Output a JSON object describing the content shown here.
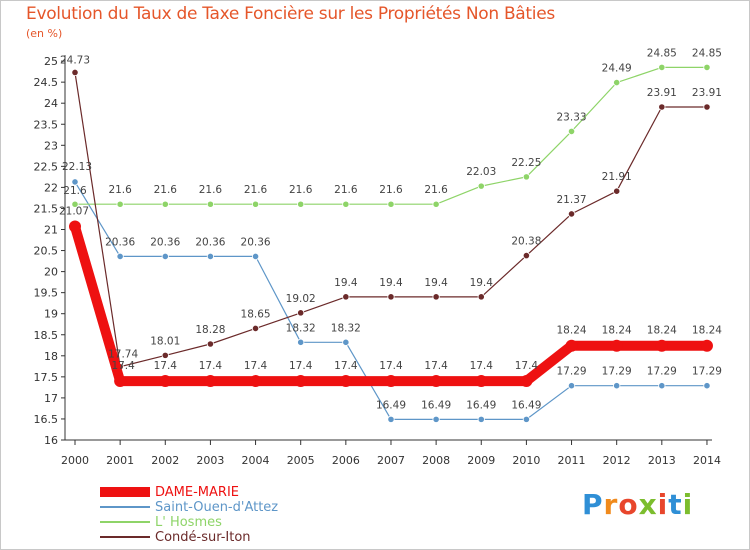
{
  "chart_data": {
    "type": "line",
    "title": "Evolution du Taux de Taxe Foncière sur les Propriétés Non Bâties",
    "unit_label": "(en %)",
    "xlabel": "",
    "ylabel": "",
    "x": [
      "2000",
      "2001",
      "2002",
      "2003",
      "2004",
      "2005",
      "2006",
      "2007",
      "2008",
      "2009",
      "2010",
      "2011",
      "2012",
      "2013",
      "2014"
    ],
    "ylim": [
      16,
      25
    ],
    "yticks": [
      "16",
      "16.5",
      "17",
      "17.5",
      "18",
      "18.5",
      "19",
      "19.5",
      "20",
      "20.5",
      "21",
      "21.5",
      "22",
      "22.5",
      "23",
      "23.5",
      "24",
      "24.5",
      "25"
    ],
    "grid": false,
    "legend_position": "bottom-left",
    "series": [
      {
        "name": "DAME-MARIE",
        "color": "#ee1111",
        "width": 10,
        "values": [
          21.07,
          17.4,
          17.4,
          17.4,
          17.4,
          17.4,
          17.4,
          17.4,
          17.4,
          17.4,
          17.4,
          18.24,
          18.24,
          18.24,
          18.24
        ],
        "labels": [
          "21.07",
          "17.4",
          "17.4",
          "17.4",
          "17.4",
          "17.4",
          "17.4",
          "17.4",
          "17.4",
          "17.4",
          "17.4",
          "18.24",
          "18.24",
          "18.24",
          "18.24"
        ]
      },
      {
        "name": "Saint-Ouen-d'Attez",
        "color": "#5e96c8",
        "width": 1.2,
        "values": [
          22.13,
          20.36,
          20.36,
          20.36,
          20.36,
          18.32,
          18.32,
          16.49,
          16.49,
          16.49,
          16.49,
          17.29,
          17.29,
          17.29,
          17.29
        ],
        "labels": [
          "22.13",
          "20.36",
          "20.36",
          "20.36",
          "20.36",
          "18.32",
          "18.32",
          "16.49",
          "16.49",
          "16.49",
          "16.49",
          "17.29",
          "17.29",
          "17.29",
          "17.29"
        ]
      },
      {
        "name": "L' Hosmes",
        "color": "#8ed468",
        "width": 1.2,
        "values": [
          21.6,
          21.6,
          21.6,
          21.6,
          21.6,
          21.6,
          21.6,
          21.6,
          21.6,
          22.03,
          22.25,
          23.33,
          24.49,
          24.85,
          24.85
        ],
        "labels": [
          "21.6",
          "21.6",
          "21.6",
          "21.6",
          "21.6",
          "21.6",
          "21.6",
          "21.6",
          "21.6",
          "22.03",
          "22.25",
          "23.33",
          "24.49",
          "24.85",
          "24.85"
        ]
      },
      {
        "name": "Condé-sur-Iton",
        "color": "#6b2a2a",
        "width": 1.2,
        "values": [
          24.73,
          17.74,
          18.01,
          18.28,
          18.65,
          19.02,
          19.4,
          19.4,
          19.4,
          19.4,
          20.38,
          21.37,
          21.91,
          23.91,
          23.91
        ],
        "labels": [
          "24.73",
          "17.74",
          "18.01",
          "18.28",
          "18.65",
          "19.02",
          "19.4",
          "19.4",
          "19.4",
          "19.4",
          "20.38",
          "21.37",
          "21.91",
          "23.91",
          "23.91"
        ]
      }
    ]
  },
  "brand": {
    "letters": [
      "P",
      "r",
      "o",
      "x",
      "i",
      "t",
      "i"
    ]
  }
}
